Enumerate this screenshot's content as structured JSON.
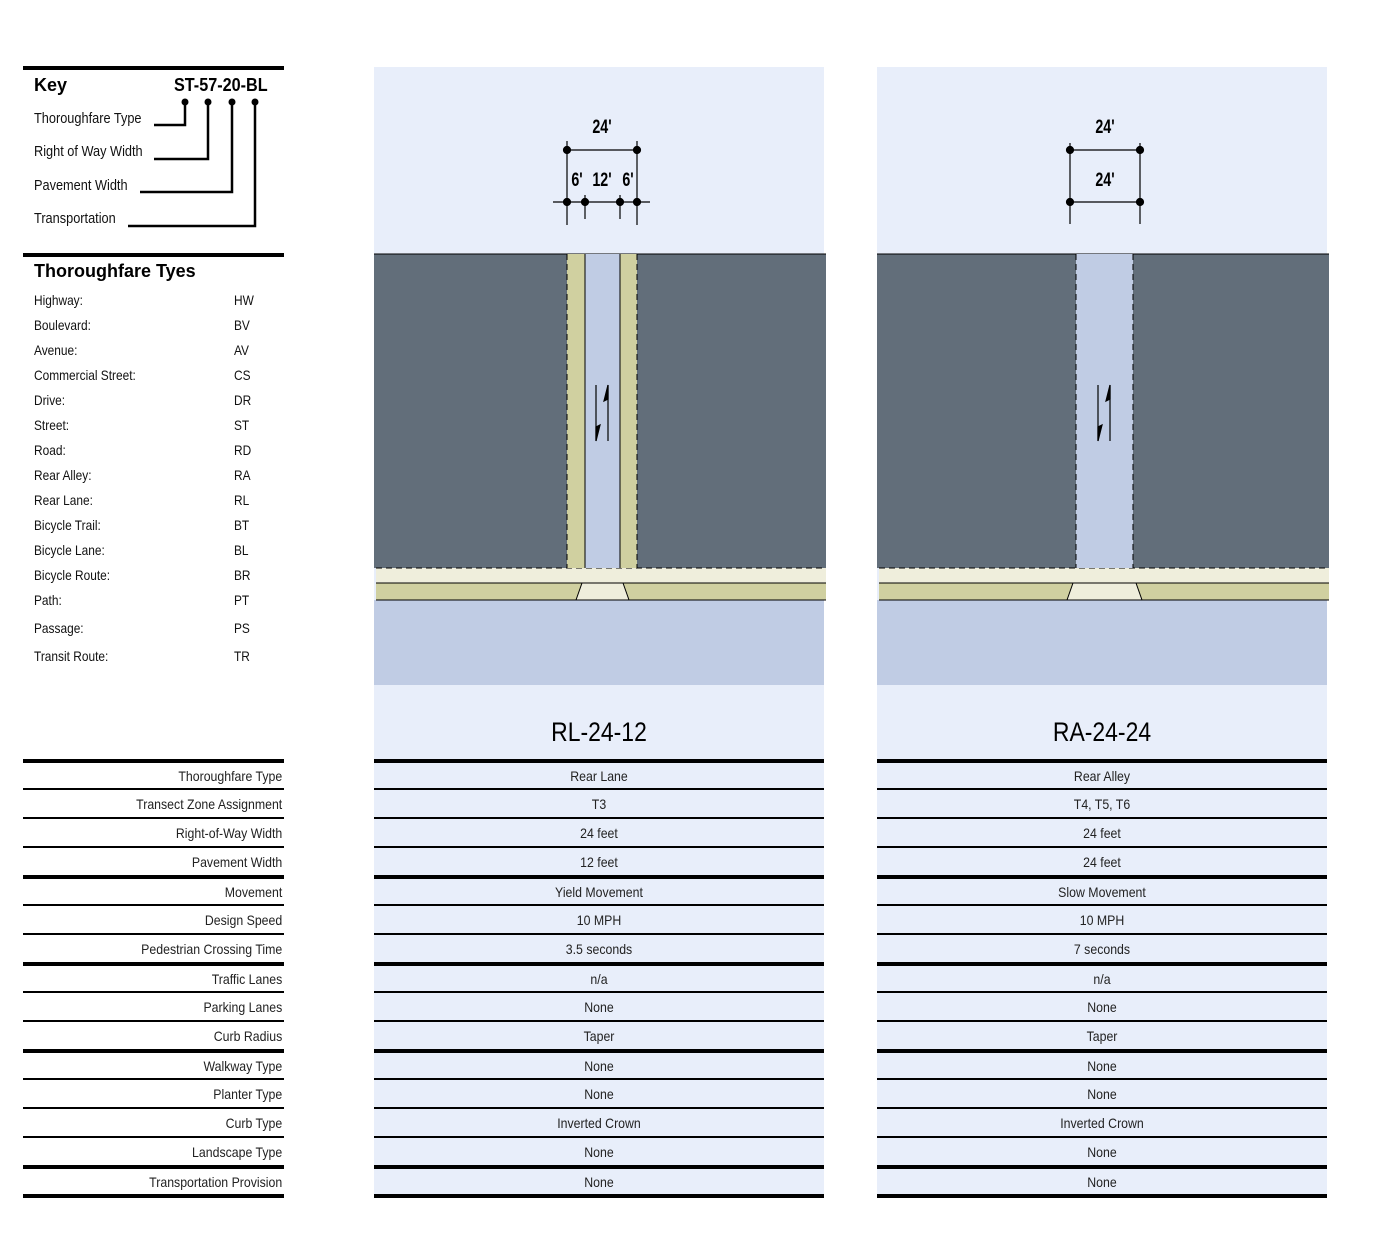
{
  "key": {
    "title": "Key",
    "example_code": "ST-57-20-BL",
    "parts": [
      "Thoroughfare Type",
      "Right of Way Width",
      "Pavement Width",
      "Transportation"
    ]
  },
  "types": {
    "title": "Thoroughfare Tyes",
    "items": [
      {
        "name": "Highway:",
        "code": "HW"
      },
      {
        "name": "Boulevard:",
        "code": "BV"
      },
      {
        "name": "Avenue:",
        "code": "AV"
      },
      {
        "name": "Commercial Street:",
        "code": "CS"
      },
      {
        "name": "Drive:",
        "code": "DR"
      },
      {
        "name": "Street:",
        "code": "ST"
      },
      {
        "name": "Road:",
        "code": "RD"
      },
      {
        "name": "Rear Alley:",
        "code": "RA"
      },
      {
        "name": "Rear Lane:",
        "code": "RL"
      },
      {
        "name": "Bicycle Trail:",
        "code": "BT"
      },
      {
        "name": "Bicycle Lane:",
        "code": "BL"
      },
      {
        "name": "Bicycle Route:",
        "code": "BR"
      },
      {
        "name": "Path:",
        "code": "PT"
      },
      {
        "name": "Passage:",
        "code": "PS"
      },
      {
        "name": "Transit Route:",
        "code": "TR"
      }
    ]
  },
  "row_labels": [
    "Thoroughfare Type",
    "Transect Zone Assignment",
    "Right-of-Way Width",
    "Pavement Width",
    "Movement",
    "Design Speed",
    "Pedestrian Crossing Time",
    "Traffic Lanes",
    "Parking Lanes",
    "Curb Radius",
    "Walkway Type",
    "Planter Type",
    "Curb Type",
    "Landscape Type",
    "Transportation Provision"
  ],
  "colors": {
    "sky": "#e8eefa",
    "lot": "#626e7a",
    "lane": "#c0cce4",
    "tan": "#d0d0a0",
    "cream": "#efeedc"
  },
  "sections": [
    {
      "title": "RL-24-12",
      "dims": {
        "top": "24'",
        "sub": [
          "6'",
          "12'",
          "6'"
        ]
      },
      "values": [
        "Rear Lane",
        "T3",
        "24 feet",
        "12 feet",
        "Yield Movement",
        "10 MPH",
        "3.5 seconds",
        "n/a",
        "None",
        "Taper",
        "None",
        "None",
        "Inverted Crown",
        "None",
        "None"
      ]
    },
    {
      "title": "RA-24-24",
      "dims": {
        "top": "24'",
        "sub": [
          "24'"
        ]
      },
      "values": [
        "Rear Alley",
        "T4, T5, T6",
        "24 feet",
        "24 feet",
        "Slow Movement",
        "10 MPH",
        "7 seconds",
        "n/a",
        "None",
        "Taper",
        "None",
        "None",
        "Inverted Crown",
        "None",
        "None"
      ]
    }
  ]
}
